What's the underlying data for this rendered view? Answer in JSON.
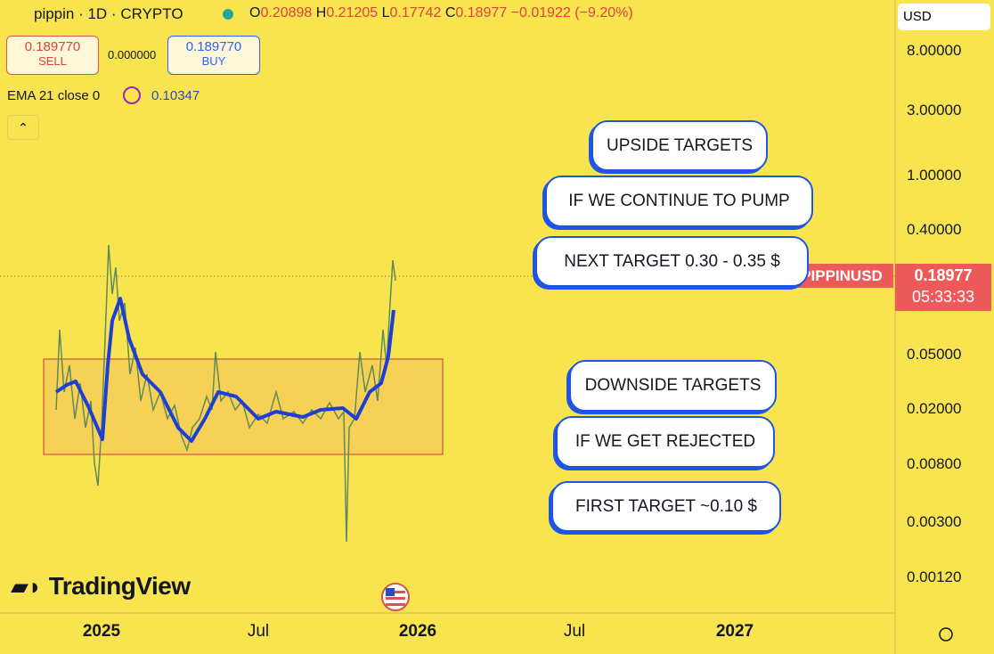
{
  "header": {
    "symbol": "pippin · 1D · CRYPTO",
    "open_label": "O",
    "open": "0.20898",
    "high_label": "H",
    "high": "0.21205",
    "low_label": "L",
    "low": "0.17742",
    "close_label": "C",
    "close": "0.18977",
    "change": "−0.01922 (−9.20%)"
  },
  "trade": {
    "sell_price": "0.189770",
    "sell": "SELL",
    "spread": "0.000000",
    "buy_price": "0.189770",
    "buy": "BUY"
  },
  "indicator": {
    "name": "EMA 21 close 0",
    "value": "0.10347"
  },
  "currency": "USD",
  "price_axis": [
    "8.00000",
    "3.00000",
    "1.00000",
    "0.40000",
    "0.05000",
    "0.02000",
    "0.00800",
    "0.00300",
    "0.00120"
  ],
  "time_axis": [
    "2025",
    "Jul",
    "2026",
    "Jul",
    "2027"
  ],
  "price_tag": {
    "symbol": "PIPPINUSD",
    "price": "0.18977",
    "countdown": "05:33:33"
  },
  "notes": [
    "UPSIDE TARGETS",
    "IF WE CONTINUE TO PUMP",
    "NEXT TARGET 0.30 - 0.35 $",
    "DOWNSIDE TARGETS",
    "IF WE GET REJECTED",
    "FIRST TARGET ~0.10 $"
  ],
  "logo": "TradingView"
}
